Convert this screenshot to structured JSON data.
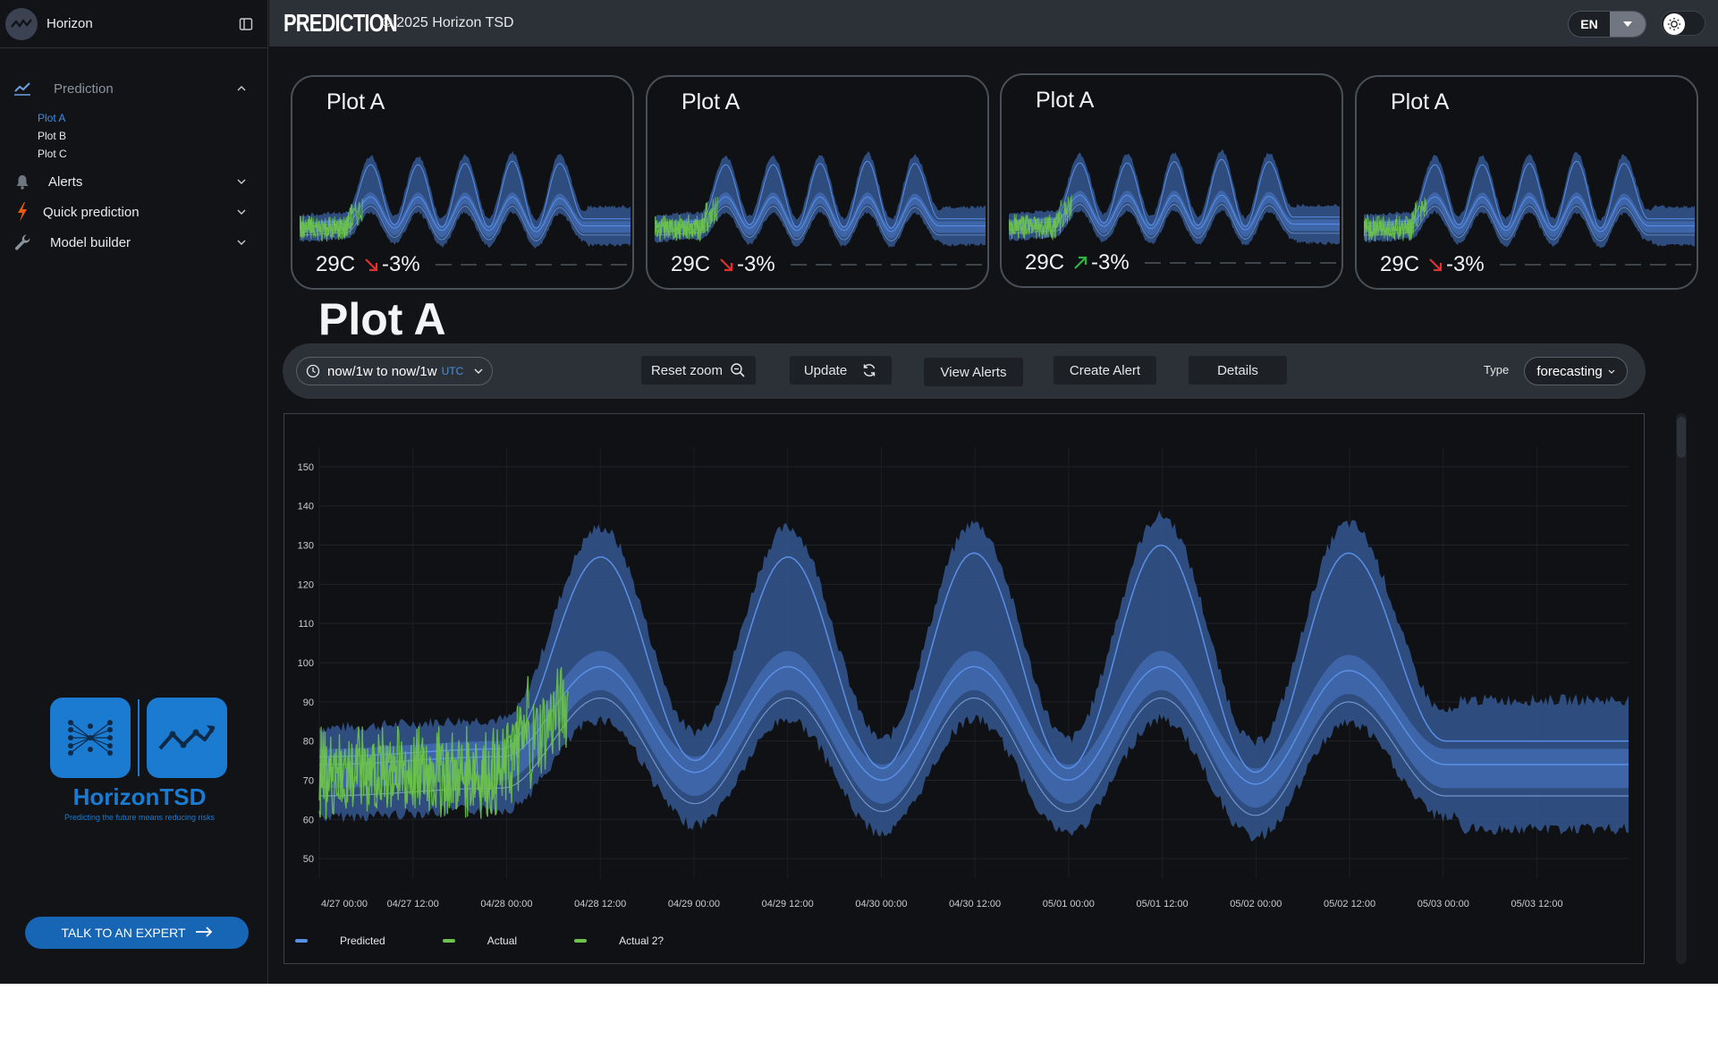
{
  "app": {
    "brand_name": "Horizon",
    "title": "PREDICTION",
    "copyright": "© 2025 Horizon TSD",
    "language": "EN"
  },
  "sidebar": {
    "sections": [
      {
        "label": "Prediction",
        "icon": "chart-line-icon",
        "expanded": true
      },
      {
        "label": "Alerts",
        "icon": "bell-icon",
        "expanded": false
      },
      {
        "label": "Quick prediction",
        "icon": "lightning-icon",
        "expanded": false
      },
      {
        "label": "Model builder",
        "icon": "wrench-icon",
        "expanded": false
      }
    ],
    "plots": [
      "Plot A",
      "Plot B",
      "Plot C"
    ],
    "selected_plot": "Plot A",
    "logo_text": "HorizonTSD",
    "logo_tagline": "Predicting the future means reducing risks",
    "expert_button": "TALK TO AN EXPERT"
  },
  "cards": [
    {
      "title": "Plot A",
      "temp": "29C",
      "change": "-3%",
      "trend": "down",
      "trend_color": "#e03131"
    },
    {
      "title": "Plot A",
      "temp": "29C",
      "change": "-3%",
      "trend": "down",
      "trend_color": "#e03131"
    },
    {
      "title": "Plot A",
      "temp": "29C",
      "change": "-3%",
      "trend": "up",
      "trend_color": "#2fb344"
    },
    {
      "title": "Plot A",
      "temp": "29C",
      "change": "-3%",
      "trend": "down",
      "trend_color": "#e03131"
    }
  ],
  "main": {
    "heading": "Plot A",
    "time_range": "now/1w to now/1w",
    "timezone": "UTC",
    "buttons": {
      "reset_zoom": "Reset zoom",
      "update": "Update",
      "view_alerts": "View Alerts",
      "create_alert": "Create Alert",
      "details": "Details"
    },
    "type_label": "Type",
    "type_value": "forecasting"
  },
  "colors": {
    "predicted": "#5a8fe6",
    "band": "#34578f",
    "actual": "#6cc24a",
    "accent": "#1b7bd1"
  },
  "chart_data": {
    "type": "line",
    "x": [
      "4/27 00:00",
      "04/27 12:00",
      "04/28 00:00",
      "04/28 12:00",
      "04/29 00:00",
      "04/29 12:00",
      "04/30 00:00",
      "04/30 12:00",
      "05/01 00:00",
      "05/01 12:00",
      "05/02 00:00",
      "05/02 12:00",
      "05/03 00:00",
      "05/03 12:00"
    ],
    "yticks": [
      50,
      60,
      70,
      80,
      90,
      100,
      110,
      120,
      130,
      140,
      150
    ],
    "ylim": [
      45,
      155
    ],
    "grid": true,
    "legend_position": "bottom-left",
    "series": [
      {
        "name": "Predicted",
        "kind": "band",
        "upper_peaks": [
          127,
          127,
          128,
          130,
          128
        ],
        "middle_peaks": [
          99,
          99,
          99,
          99,
          98
        ],
        "troughs": [
          75,
          73,
          73,
          72,
          72
        ],
        "tail": 74
      },
      {
        "name": "Actual",
        "kind": "line",
        "range": [
          55,
          110
        ],
        "segment": "04/27 00:00 – 04/28 12:00"
      },
      {
        "name": "Actual 2?",
        "kind": "line",
        "range": [
          60,
          95
        ],
        "segment": "04/27 00:00 – 04/28 06:00"
      }
    ]
  }
}
